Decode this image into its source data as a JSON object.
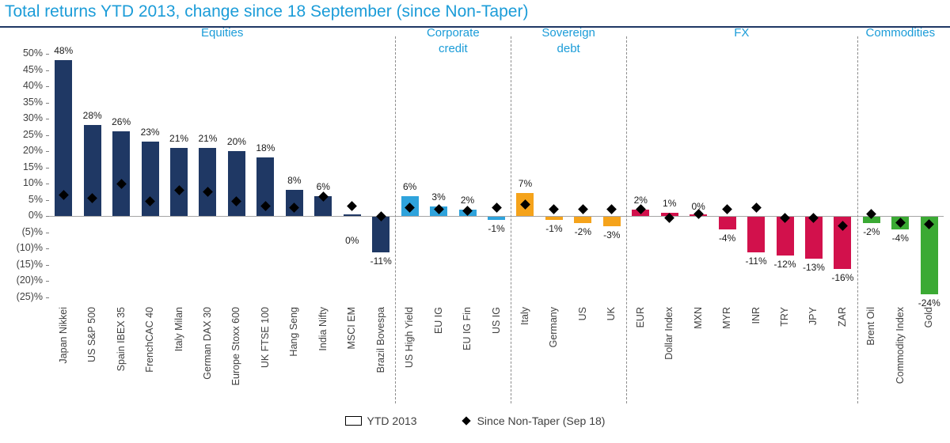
{
  "page": {
    "title": "Total returns YTD 2013, change since 18 September (since Non-Taper)"
  },
  "legend": {
    "ytd_label": "YTD 2013",
    "since_label": "Since Non-Taper (Sep 18)"
  },
  "colors": {
    "accent": "#1B9CD8",
    "equities": "#1F3864",
    "corporate_credit": "#2FA3DC",
    "sovereign_debt": "#F5A31B",
    "fx": "#D2114C",
    "commodities": "#3BAA34",
    "diamond": "#000000",
    "axis_text": "#404040",
    "zero_line": "#A6A6A6",
    "separator": "#8C8C8C",
    "title_rule": "#1F3864"
  },
  "chart_data": {
    "type": "bar",
    "title": "Total returns YTD 2013, change since 18 September (since Non-Taper)",
    "xlabel": "",
    "ylabel": "",
    "ylim": [
      -25,
      50
    ],
    "ytick_step": 5,
    "ytick_labels": [
      "50%",
      "45%",
      "40%",
      "35%",
      "30%",
      "25%",
      "20%",
      "15%",
      "10%",
      "5%",
      "0%",
      "(5)%",
      "(10)%",
      "(15)%",
      "(20)%",
      "(25)%"
    ],
    "grid": false,
    "legend_position": "bottom",
    "series": [
      {
        "name": "YTD 2013",
        "style": "bar"
      },
      {
        "name": "Since Non-Taper (Sep 18)",
        "style": "diamond"
      }
    ],
    "groups": [
      {
        "label": "Equities",
        "label_lines": [
          "Equities"
        ],
        "color_key": "equities",
        "items": [
          {
            "name": "Japan Nikkei",
            "ytd": 48,
            "since": 6.5
          },
          {
            "name": "US S&P 500",
            "ytd": 28,
            "since": 5.5
          },
          {
            "name": "Spain IBEX 35",
            "ytd": 26,
            "since": 10
          },
          {
            "name": "FrenchCAC 40",
            "ytd": 23,
            "since": 4.5
          },
          {
            "name": "Italy Milan",
            "ytd": 21,
            "since": 8
          },
          {
            "name": "German DAX 30",
            "ytd": 21,
            "since": 7.5
          },
          {
            "name": "Europe Stoxx 600",
            "ytd": 20,
            "since": 4.5
          },
          {
            "name": "UK FTSE 100",
            "ytd": 18,
            "since": 3
          },
          {
            "name": "Hang Seng",
            "ytd": 8,
            "since": 2.5
          },
          {
            "name": "India Nifty",
            "ytd": 6,
            "since": 6
          },
          {
            "name": "MSCI EM",
            "ytd": 0,
            "since": 3
          },
          {
            "name": "Brazil Bovespa",
            "ytd": -11,
            "since": 0
          }
        ]
      },
      {
        "label": "Corporate credit",
        "label_lines": [
          "Corporate",
          "credit"
        ],
        "color_key": "corporate_credit",
        "items": [
          {
            "name": "US High Yield",
            "ytd": 6,
            "since": 2.5
          },
          {
            "name": "EU IG",
            "ytd": 3,
            "since": 2
          },
          {
            "name": "EU IG Fin",
            "ytd": 2,
            "since": 1.5
          },
          {
            "name": "US IG",
            "ytd": -1,
            "since": 2.5
          }
        ]
      },
      {
        "label": "Sovereign debt",
        "label_lines": [
          "Sovereign",
          "debt"
        ],
        "color_key": "sovereign_debt",
        "items": [
          {
            "name": "Italy",
            "ytd": 7,
            "since": 3.5
          },
          {
            "name": "Germany",
            "ytd": -1,
            "since": 2
          },
          {
            "name": "US",
            "ytd": -2,
            "since": 2
          },
          {
            "name": "UK",
            "ytd": -3,
            "since": 2
          }
        ]
      },
      {
        "label": "FX",
        "label_lines": [
          "FX"
        ],
        "color_key": "fx",
        "items": [
          {
            "name": "EUR",
            "ytd": 2,
            "since": 2
          },
          {
            "name": "Dollar Index",
            "ytd": 1,
            "since": -0.5
          },
          {
            "name": "MXN",
            "ytd": 0,
            "since": 0.5
          },
          {
            "name": "MYR",
            "ytd": -4,
            "since": 2
          },
          {
            "name": "INR",
            "ytd": -11,
            "since": 2.5
          },
          {
            "name": "TRY",
            "ytd": -12,
            "since": -0.5
          },
          {
            "name": "JPY",
            "ytd": -13,
            "since": -0.5
          },
          {
            "name": "ZAR",
            "ytd": -16,
            "since": -3
          }
        ]
      },
      {
        "label": "Commodities",
        "label_lines": [
          "Commodities"
        ],
        "color_key": "commodities",
        "items": [
          {
            "name": "Brent Oil",
            "ytd": -2,
            "since": 0.5
          },
          {
            "name": "Commodity Index",
            "ytd": -4,
            "since": -2
          },
          {
            "name": "Gold",
            "ytd": -24,
            "since": -2.5
          }
        ]
      }
    ]
  }
}
